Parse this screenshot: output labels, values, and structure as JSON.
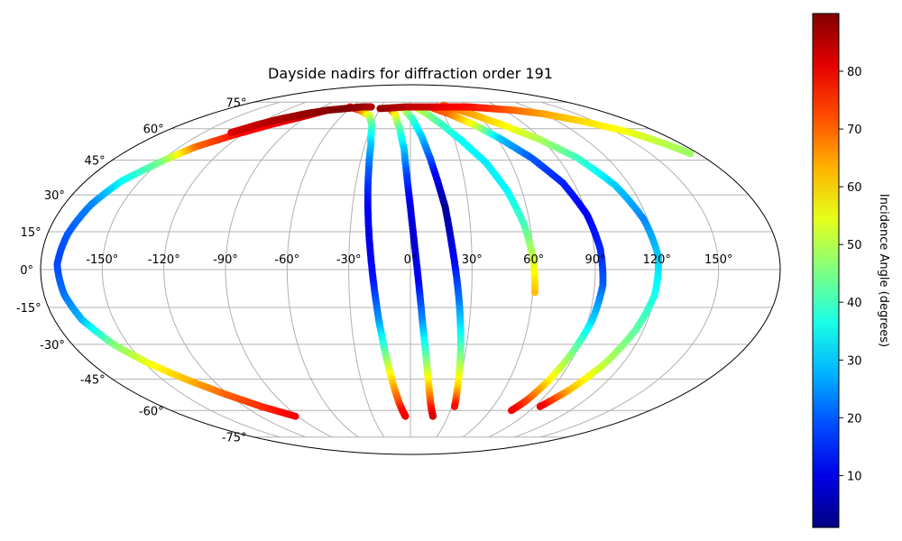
{
  "chart_data": {
    "type": "scatter",
    "projection": "mollweide",
    "title": "Dayside nadirs for diffraction order 191",
    "x_ticks": [
      "-150°",
      "-120°",
      "-90°",
      "-60°",
      "-30°",
      "0°",
      "30°",
      "60°",
      "90°",
      "120°",
      "150°"
    ],
    "y_ticks": [
      "75°",
      "60°",
      "45°",
      "30°",
      "15°",
      "0°",
      "-15°",
      "-30°",
      "-45°",
      "-60°",
      "-75°"
    ],
    "grid": true,
    "colorbar": {
      "label": "Incidence Angle (degrees)",
      "colormap": "jet",
      "range": [
        1,
        90
      ],
      "ticks": [
        "10",
        "20",
        "30",
        "40",
        "50",
        "60",
        "70",
        "80"
      ]
    },
    "series": [
      {
        "lon": [
          -80,
          -95,
          -110,
          -125,
          -140,
          -150,
          -160,
          -166,
          -170,
          -172,
          -170,
          -166,
          -158,
          -148,
          -136,
          -122,
          -108,
          -92
        ],
        "lat": [
          70,
          66,
          62,
          57,
          51,
          44,
          36,
          26,
          14,
          2,
          -10,
          -20,
          -30,
          -38,
          -45,
          -52,
          -58,
          -63
        ],
        "inc": [
          85,
          83,
          80,
          78,
          70,
          45,
          35,
          24,
          20,
          18,
          22,
          28,
          45,
          55,
          62,
          70,
          75,
          80
        ]
      },
      {
        "lon": [
          -62,
          -48,
          -36,
          -30,
          -26,
          -24,
          -22,
          -20,
          -18,
          -16,
          -14,
          -12,
          -10,
          -8,
          -6,
          -4
        ],
        "lat": [
          72,
          70,
          67,
          62,
          52,
          40,
          25,
          10,
          -5,
          -20,
          -32,
          -42,
          -50,
          -56,
          -60,
          -63
        ],
        "inc": [
          78,
          72,
          55,
          42,
          30,
          20,
          12,
          10,
          14,
          25,
          40,
          55,
          65,
          72,
          78,
          80
        ]
      },
      {
        "lon": [
          -20,
          -14,
          -8,
          -4,
          -2,
          0,
          2,
          4,
          6,
          8,
          10,
          12,
          14,
          16,
          18
        ],
        "lat": [
          71,
          68,
          60,
          50,
          38,
          25,
          10,
          -5,
          -20,
          -32,
          -42,
          -50,
          -56,
          -60,
          -63
        ],
        "inc": [
          85,
          60,
          42,
          30,
          18,
          10,
          8,
          12,
          24,
          38,
          52,
          63,
          72,
          78,
          82
        ]
      },
      {
        "lon": [
          -8,
          2,
          8,
          12,
          15,
          18,
          20,
          22,
          24,
          26,
          28,
          30,
          32
        ],
        "lat": [
          72,
          65,
          56,
          46,
          36,
          25,
          12,
          0,
          -12,
          -25,
          -38,
          -50,
          -58
        ],
        "inc": [
          60,
          40,
          30,
          20,
          10,
          3,
          8,
          14,
          22,
          34,
          48,
          62,
          78
        ]
      },
      {
        "lon": [
          5,
          15,
          25,
          35,
          45,
          52,
          57,
          60,
          61
        ],
        "lat": [
          72,
          68,
          62,
          54,
          44,
          32,
          18,
          4,
          -9
        ],
        "inc": [
          55,
          48,
          40,
          35,
          33,
          34,
          40,
          52,
          62
        ]
      },
      {
        "lon": [
          20,
          35,
          50,
          62,
          74,
          84,
          90,
          93,
          94,
          92,
          88,
          84,
          80,
          76
        ],
        "lat": [
          72,
          68,
          62,
          55,
          46,
          35,
          22,
          8,
          -6,
          -20,
          -34,
          -46,
          -55,
          -60
        ],
        "inc": [
          75,
          70,
          55,
          30,
          20,
          15,
          12,
          15,
          20,
          30,
          45,
          58,
          72,
          80
        ]
      },
      {
        "lon": [
          35,
          55,
          72,
          88,
          102,
          112,
          118,
          121,
          120,
          116,
          110,
          102,
          94
        ],
        "lat": [
          73,
          68,
          62,
          55,
          46,
          34,
          20,
          5,
          -10,
          -24,
          -38,
          -50,
          -58
        ],
        "inc": [
          70,
          65,
          58,
          50,
          40,
          30,
          24,
          30,
          36,
          42,
          50,
          62,
          80
        ]
      },
      {
        "lon": [
          -30,
          -5,
          20,
          40,
          60,
          80,
          100,
          120,
          140,
          160,
          170,
          175
        ],
        "lat": [
          71,
          72,
          72,
          72,
          72,
          71,
          70,
          68,
          64,
          58,
          52,
          48
        ],
        "inc": [
          88,
          85,
          83,
          80,
          78,
          75,
          70,
          65,
          60,
          55,
          50,
          48
        ]
      },
      {
        "lon": [
          -130,
          -120,
          -110,
          -95,
          -80,
          -65,
          -50,
          -40
        ],
        "lat": [
          58,
          62,
          65,
          68,
          70,
          71,
          72,
          72
        ],
        "inc": [
          82,
          84,
          86,
          88,
          89,
          90,
          88,
          86
        ]
      }
    ]
  }
}
